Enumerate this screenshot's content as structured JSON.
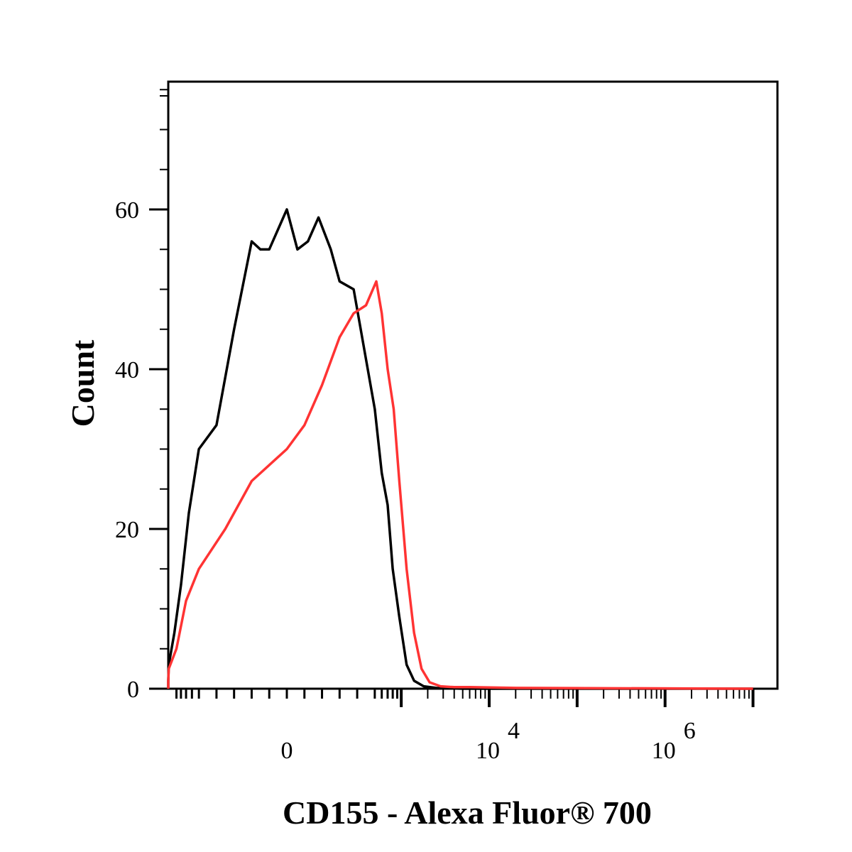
{
  "chart_data": {
    "type": "line",
    "title": "",
    "xlabel": "CD155 - Alexa Fluor® 700",
    "ylabel": "Count",
    "x_scale": "biexponential",
    "x_ticks": [
      {
        "value": 0,
        "label": "0",
        "exp": ""
      },
      {
        "value": 10000,
        "label": "10",
        "exp": "4"
      },
      {
        "value": 1000000,
        "label": "10",
        "exp": "6"
      }
    ],
    "y_ticks": [
      0,
      20,
      40,
      60
    ],
    "ylim": [
      0,
      76
    ],
    "grid": false,
    "legend": "none",
    "series": [
      {
        "color": "#000000",
        "points": [
          [
            -2300,
            0
          ],
          [
            -1700,
            0.2
          ],
          [
            -1400,
            1
          ],
          [
            -1100,
            3
          ],
          [
            -950,
            7
          ],
          [
            -800,
            13
          ],
          [
            -650,
            22
          ],
          [
            -500,
            30
          ],
          [
            -400,
            33
          ],
          [
            -300,
            45
          ],
          [
            -200,
            56
          ],
          [
            -150,
            55
          ],
          [
            -100,
            55
          ],
          [
            0,
            60
          ],
          [
            60,
            55
          ],
          [
            120,
            56
          ],
          [
            180,
            59
          ],
          [
            250,
            55
          ],
          [
            300,
            51
          ],
          [
            380,
            50
          ],
          [
            500,
            35
          ],
          [
            600,
            27
          ],
          [
            700,
            23
          ],
          [
            800,
            15
          ],
          [
            950,
            9
          ],
          [
            1150,
            3
          ],
          [
            1400,
            1
          ],
          [
            1800,
            0.3
          ],
          [
            2500,
            0.1
          ],
          [
            5000,
            0
          ],
          [
            10000000,
            0
          ]
        ]
      },
      {
        "color": "#ff3333",
        "points": [
          [
            -2300,
            0
          ],
          [
            -1700,
            0.2
          ],
          [
            -1400,
            1
          ],
          [
            -1100,
            2.5
          ],
          [
            -900,
            5
          ],
          [
            -700,
            11
          ],
          [
            -500,
            15
          ],
          [
            -350,
            20
          ],
          [
            -200,
            26
          ],
          [
            0,
            30
          ],
          [
            100,
            33
          ],
          [
            200,
            38
          ],
          [
            300,
            44
          ],
          [
            380,
            47
          ],
          [
            450,
            48
          ],
          [
            520,
            51
          ],
          [
            600,
            47
          ],
          [
            700,
            40
          ],
          [
            820,
            35
          ],
          [
            950,
            26
          ],
          [
            1150,
            15
          ],
          [
            1400,
            7
          ],
          [
            1700,
            2.5
          ],
          [
            2100,
            0.8
          ],
          [
            2800,
            0.3
          ],
          [
            4000,
            0.2
          ],
          [
            6000,
            0.2
          ],
          [
            20000,
            0.1
          ],
          [
            10000000,
            0
          ]
        ]
      }
    ]
  }
}
